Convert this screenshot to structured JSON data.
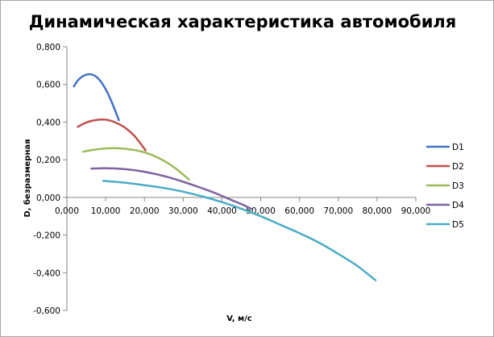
{
  "chart_data": {
    "type": "line",
    "title": "Динамическая характеристика автомобиля",
    "xlabel": "V, м/с",
    "ylabel": "D, безразмерная",
    "xlim": [
      0,
      90
    ],
    "ylim": [
      -0.6,
      0.8
    ],
    "x_ticks": [
      {
        "value": 0,
        "label": "0,000"
      },
      {
        "value": 10,
        "label": "10,000"
      },
      {
        "value": 20,
        "label": "20,000"
      },
      {
        "value": 30,
        "label": "30,000"
      },
      {
        "value": 40,
        "label": "40,000"
      },
      {
        "value": 50,
        "label": "50,000"
      },
      {
        "value": 60,
        "label": "60,000"
      },
      {
        "value": 70,
        "label": "70,000"
      },
      {
        "value": 80,
        "label": "80,000"
      },
      {
        "value": 90,
        "label": "90,000"
      }
    ],
    "y_ticks": [
      {
        "value": 0.8,
        "label": "0,800"
      },
      {
        "value": 0.6,
        "label": "0,600"
      },
      {
        "value": 0.4,
        "label": "0,400"
      },
      {
        "value": 0.2,
        "label": "0,200"
      },
      {
        "value": 0.0,
        "label": "0,000"
      },
      {
        "value": -0.2,
        "label": "-0,200"
      },
      {
        "value": -0.4,
        "label": "-0,400"
      },
      {
        "value": -0.6,
        "label": "-0,600"
      }
    ],
    "grid": false,
    "legend_position": "right",
    "series": [
      {
        "name": "D1",
        "color": "#4472c4",
        "points": [
          [
            1.8,
            0.59
          ],
          [
            3,
            0.625
          ],
          [
            4.5,
            0.648
          ],
          [
            6,
            0.654
          ],
          [
            7.5,
            0.642
          ],
          [
            9,
            0.608
          ],
          [
            10.5,
            0.555
          ],
          [
            12,
            0.485
          ],
          [
            13.4,
            0.41
          ]
        ]
      },
      {
        "name": "D2",
        "color": "#c0504d",
        "points": [
          [
            2.8,
            0.375
          ],
          [
            5,
            0.398
          ],
          [
            7.5,
            0.411
          ],
          [
            10,
            0.413
          ],
          [
            12.5,
            0.398
          ],
          [
            15,
            0.37
          ],
          [
            17.5,
            0.325
          ],
          [
            20.3,
            0.25
          ]
        ]
      },
      {
        "name": "D3",
        "color": "#9bbb59",
        "points": [
          [
            4.2,
            0.243
          ],
          [
            7,
            0.253
          ],
          [
            10,
            0.26
          ],
          [
            13,
            0.261
          ],
          [
            16,
            0.256
          ],
          [
            19,
            0.245
          ],
          [
            22,
            0.225
          ],
          [
            25,
            0.195
          ],
          [
            28,
            0.155
          ],
          [
            31.5,
            0.095
          ]
        ]
      },
      {
        "name": "D4",
        "color": "#8064a2",
        "points": [
          [
            6.3,
            0.153
          ],
          [
            10,
            0.155
          ],
          [
            14,
            0.152
          ],
          [
            18,
            0.143
          ],
          [
            22,
            0.128
          ],
          [
            26,
            0.108
          ],
          [
            30,
            0.083
          ],
          [
            34,
            0.055
          ],
          [
            38,
            0.025
          ],
          [
            42,
            -0.01
          ],
          [
            45.5,
            -0.04
          ],
          [
            47.5,
            -0.06
          ]
        ]
      },
      {
        "name": "D5",
        "color": "#4bacc6",
        "points": [
          [
            9.4,
            0.088
          ],
          [
            15,
            0.078
          ],
          [
            20,
            0.065
          ],
          [
            25,
            0.05
          ],
          [
            30,
            0.03
          ],
          [
            35,
            0.005
          ],
          [
            40,
            -0.025
          ],
          [
            45,
            -0.06
          ],
          [
            50,
            -0.1
          ],
          [
            55,
            -0.145
          ],
          [
            60,
            -0.19
          ],
          [
            65,
            -0.24
          ],
          [
            70,
            -0.3
          ],
          [
            75,
            -0.365
          ],
          [
            79.6,
            -0.44
          ]
        ]
      }
    ]
  }
}
